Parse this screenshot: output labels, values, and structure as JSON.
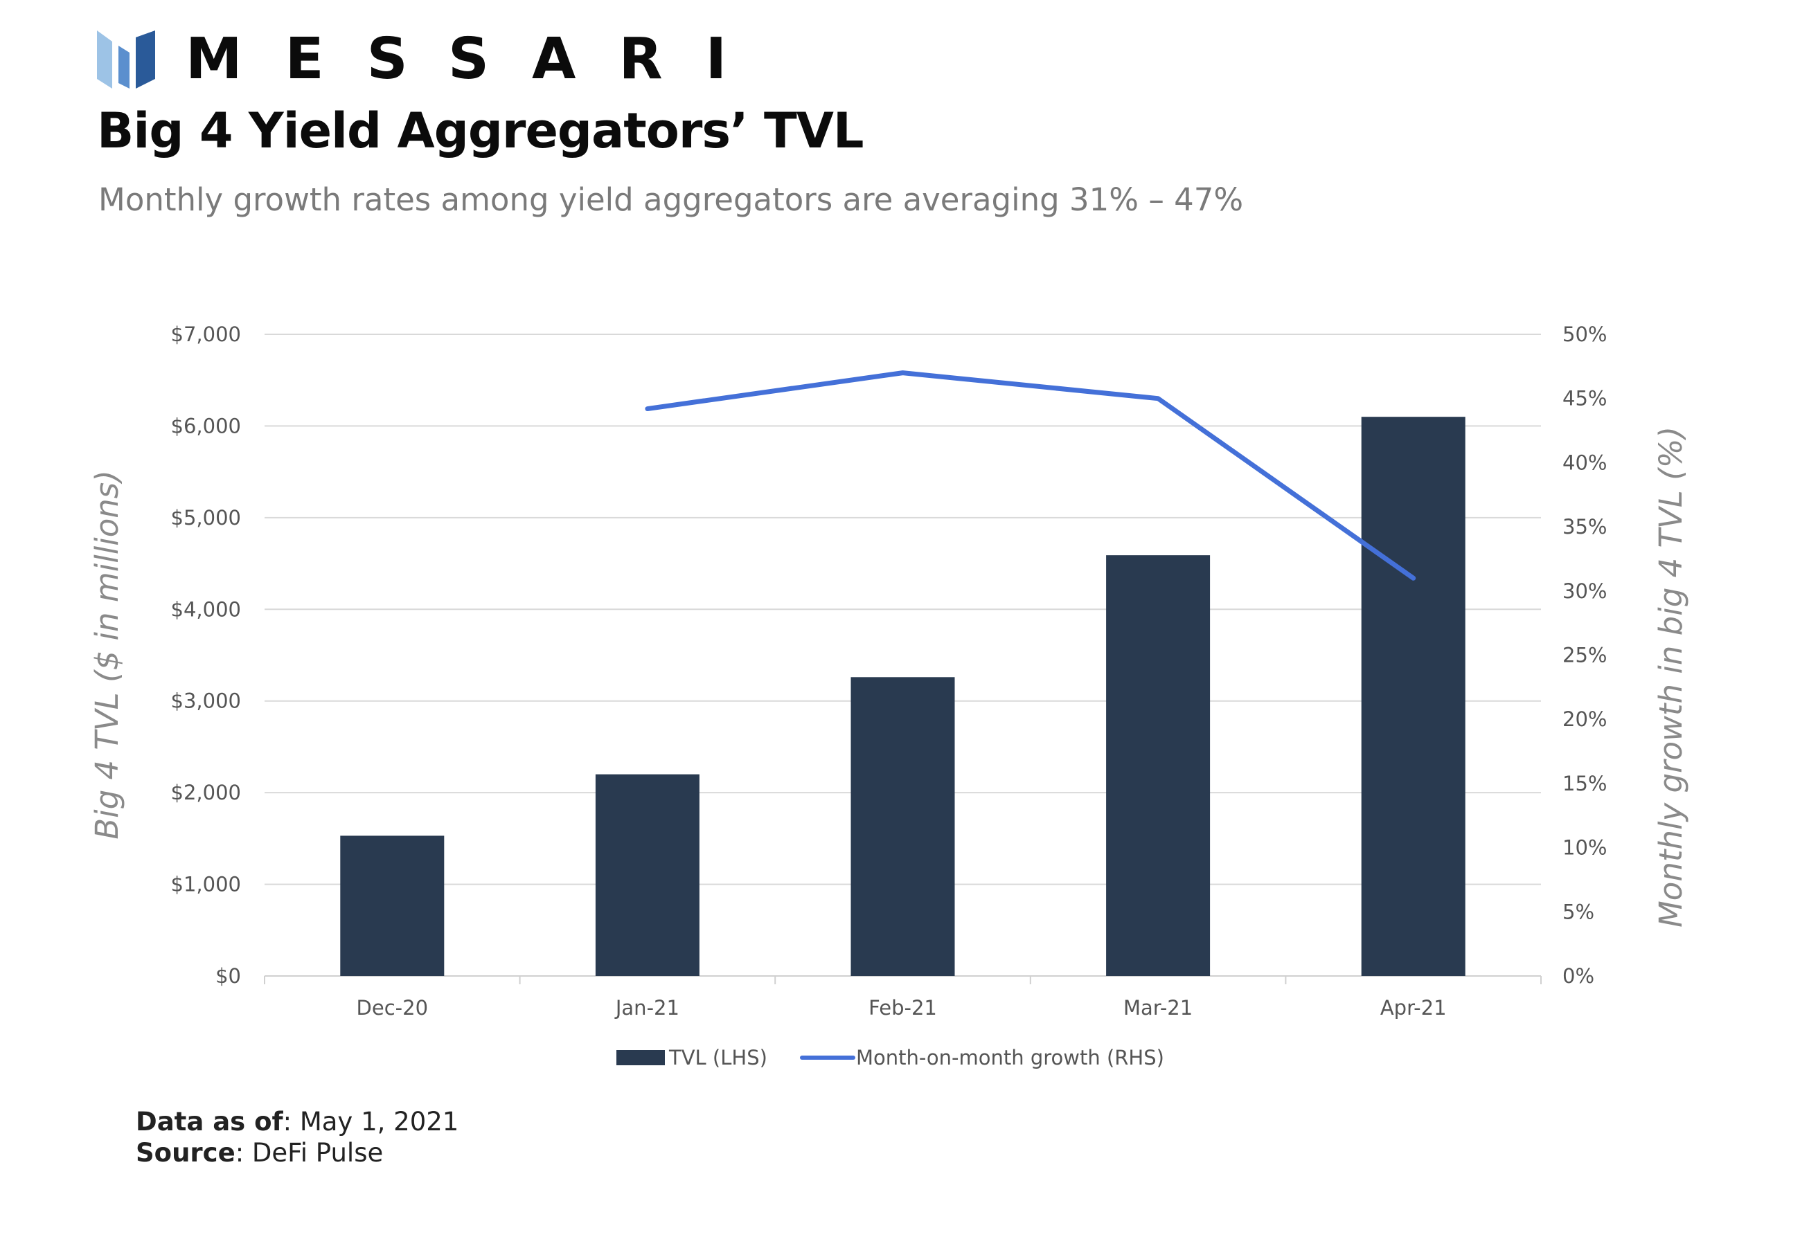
{
  "brand": {
    "name": "MESSARI",
    "colors": {
      "light": "#9dc3e6",
      "mid": "#5b8fce",
      "dark": "#2a5a99"
    }
  },
  "title": "Big 4 Yield Aggregators’ TVL",
  "subtitle": "Monthly growth rates among yield aggregators are averaging 31% – 47%",
  "footer": {
    "data_as_of_label": "Data as of",
    "data_as_of_value": ": May 1, 2021",
    "source_label": "Source",
    "source_value": ": DeFi Pulse"
  },
  "chart_data": {
    "type": "bar",
    "categories": [
      "Dec-20",
      "Jan-21",
      "Feb-21",
      "Mar-21",
      "Apr-21"
    ],
    "series": [
      {
        "name": "TVL (LHS)",
        "kind": "bar",
        "axis": "left",
        "color": "#293a50",
        "values": [
          1530,
          2200,
          3260,
          4590,
          6100
        ]
      },
      {
        "name": "Month-on-month growth (RHS)",
        "kind": "line",
        "axis": "right",
        "color": "#4470d8",
        "values": [
          null,
          44.2,
          47.0,
          45.0,
          31.0
        ]
      }
    ],
    "ylabel": "Big 4 TVL ($ in millions)",
    "y2label": "Monthly growth in big 4 TVL (%)",
    "ylim": [
      0,
      7000
    ],
    "y2lim": [
      0,
      50
    ],
    "yticks": [
      "$0",
      "$1,000",
      "$2,000",
      "$3,000",
      "$4,000",
      "$5,000",
      "$6,000",
      "$7,000"
    ],
    "y2ticks": [
      "0%",
      "5%",
      "10%",
      "15%",
      "20%",
      "25%",
      "30%",
      "35%",
      "40%",
      "45%",
      "50%"
    ],
    "grid": true,
    "legend_position": "bottom-center"
  }
}
